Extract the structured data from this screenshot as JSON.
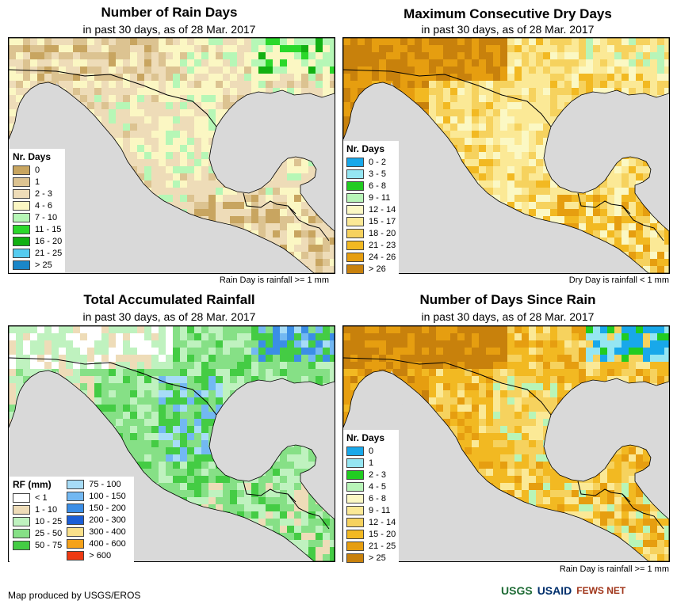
{
  "panels": [
    {
      "id": "rain_days",
      "title": "Number of Rain Days",
      "subtitle": "in past 30 days, as of 28 Mar. 2017",
      "note": "Rain Day is rainfall >= 1 mm",
      "legend_title": "Nr. Days",
      "legend": [
        {
          "label": "0",
          "color": "#c8a560"
        },
        {
          "label": "1",
          "color": "#dcc391"
        },
        {
          "label": "2 - 3",
          "color": "#eedcb8"
        },
        {
          "label": "4 - 6",
          "color": "#fbf7c3"
        },
        {
          "label": "7 - 10",
          "color": "#b6f7b6"
        },
        {
          "label": "11 - 15",
          "color": "#2bd82b"
        },
        {
          "label": "16 - 20",
          "color": "#12b012"
        },
        {
          "label": "21 - 25",
          "color": "#55ccf0"
        },
        {
          "label": "> 25",
          "color": "#1a86c8"
        }
      ]
    },
    {
      "id": "dry_days",
      "title": "Maximum Consecutive Dry Days",
      "subtitle": "in past 30 days, as of 28 Mar. 2017",
      "note": "Dry Day is rainfall < 1 mm",
      "legend_title": "Nr. Days",
      "legend": [
        {
          "label": "0 - 2",
          "color": "#18a8ea"
        },
        {
          "label": "3 - 5",
          "color": "#95e6f2"
        },
        {
          "label": "6 - 8",
          "color": "#21cc21"
        },
        {
          "label": "9 - 11",
          "color": "#b8f5b8"
        },
        {
          "label": "12 - 14",
          "color": "#fbf8c4"
        },
        {
          "label": "15 - 17",
          "color": "#fbe996"
        },
        {
          "label": "18 - 20",
          "color": "#f6d25e"
        },
        {
          "label": "21 - 23",
          "color": "#f2b922"
        },
        {
          "label": "24 - 26",
          "color": "#e69e10"
        },
        {
          "label": "> 26",
          "color": "#c8810c"
        }
      ]
    },
    {
      "id": "rainfall",
      "title": "Total Accumulated Rainfall",
      "subtitle": "in past 30 days, as of 28 Mar. 2017",
      "note": "",
      "legend_title": "RF (mm)",
      "legend": [
        {
          "label": "< 1",
          "color": "#ffffff"
        },
        {
          "label": "1 - 10",
          "color": "#eedcb8"
        },
        {
          "label": "10 - 25",
          "color": "#bff2bf"
        },
        {
          "label": "25 - 50",
          "color": "#86e086"
        },
        {
          "label": "50 - 75",
          "color": "#44cc44"
        },
        {
          "label": "75 - 100",
          "color": "#a7dcf7"
        },
        {
          "label": "100 - 150",
          "color": "#72b8f2"
        },
        {
          "label": "150 - 200",
          "color": "#3b8ee6"
        },
        {
          "label": "200 - 300",
          "color": "#1b5ed6"
        },
        {
          "label": "300 - 400",
          "color": "#f9e08a"
        },
        {
          "label": "400 - 600",
          "color": "#f5a21a"
        },
        {
          "label": "> 600",
          "color": "#ee3a12"
        }
      ]
    },
    {
      "id": "days_since_rain",
      "title": "Number of Days Since Rain",
      "subtitle": "in past 30 days, as of 28 Mar. 2017",
      "note": "Rain Day is rainfall >= 1 mm",
      "legend_title": "Nr. Days",
      "legend": [
        {
          "label": "0",
          "color": "#18a8ea"
        },
        {
          "label": "1",
          "color": "#95e6f2"
        },
        {
          "label": "2 - 3",
          "color": "#21cc21"
        },
        {
          "label": "4 - 5",
          "color": "#b8f5b8"
        },
        {
          "label": "6 - 8",
          "color": "#fbf8c4"
        },
        {
          "label": "9 - 11",
          "color": "#fbe996"
        },
        {
          "label": "12 - 14",
          "color": "#f6d25e"
        },
        {
          "label": "15 - 20",
          "color": "#f2b922"
        },
        {
          "label": "21 - 25",
          "color": "#e69e10"
        },
        {
          "label": "> 25",
          "color": "#c8810c"
        }
      ]
    }
  ],
  "credit": "Map produced by USGS/EROS",
  "logos": [
    "USGS",
    "USAID",
    "FEWS NET"
  ],
  "colors": {
    "ocean": "#d9d9d9",
    "border": "#000000"
  }
}
